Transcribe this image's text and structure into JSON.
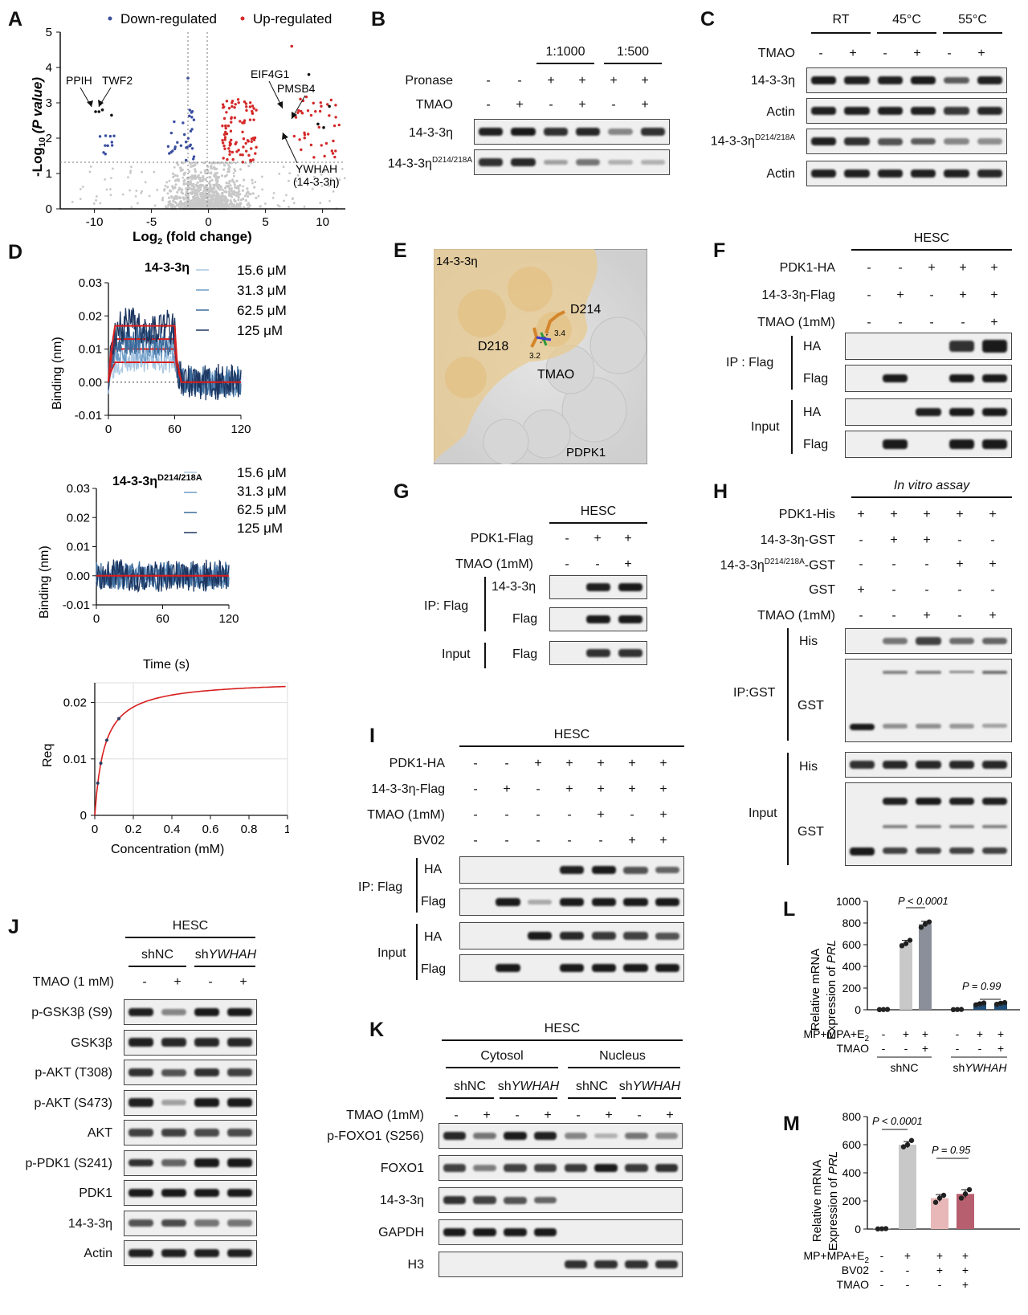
{
  "panels": {
    "A": "A",
    "B": "B",
    "C": "C",
    "D": "D",
    "E": "E",
    "F": "F",
    "G": "G",
    "H": "H",
    "I": "I",
    "J": "J",
    "K": "K",
    "L": "L",
    "M": "M"
  },
  "common": {
    "plus": "+",
    "minus": "-",
    "hesc": "HESC",
    "tmao": "TMAO",
    "tmao1mm": "TMAO (1mM)",
    "flag": "Flag",
    "ha": "HA",
    "his": "His",
    "gst": "GST",
    "input": "Input",
    "actin": "Actin",
    "eta": "14-3-3η",
    "mut_base": "14-3-3η",
    "mut_sup": "D214/218A",
    "pdk1_flag": "PDK1-Flag",
    "pdk1_ha": "PDK1-HA",
    "eta_flag": "14-3-3η-Flag"
  },
  "panelA": {
    "legend_down": "Down-regulated",
    "legend_up": "Up-regulated",
    "ylabel_pre": "-Log",
    "ylabel_sub": "10",
    "ylabel_post": " (P value)",
    "xlabel_pre": "Log",
    "xlabel_sub": "2",
    "xlabel_post": " (fold change)",
    "genes": [
      "PPIH",
      "TWF2",
      "EIF4G1",
      "PMSB4",
      "YWHAH",
      "(14-3-3η)"
    ],
    "xticks": [
      "-10",
      "-5",
      "0",
      "5",
      "10"
    ],
    "yticks": [
      "0",
      "1",
      "2",
      "3",
      "4",
      "5"
    ],
    "colors": {
      "down": "#3a4fa0",
      "up": "#d42a2a",
      "ns": "#c8c8c8"
    }
  },
  "panelB": {
    "ratio1": "1:1000",
    "ratio2": "1:500",
    "pronase": "Pronase",
    "tmao": "TMAO",
    "pronase_signs": [
      "-",
      "-",
      "+",
      "+",
      "+",
      "+"
    ],
    "tmao_signs": [
      "-",
      "+",
      "-",
      "+",
      "-",
      "+"
    ]
  },
  "panelC": {
    "temps": [
      "RT",
      "45°C",
      "55°C"
    ],
    "tmao_signs": [
      "-",
      "+",
      "-",
      "+",
      "-",
      "+"
    ]
  },
  "panelD": {
    "title1": "14-3-3η",
    "title2_base": "14-3-3η",
    "title2_sup": "D214/218A",
    "concs": [
      "15.6 μM",
      "31.3 μM",
      "62.5 μM",
      "125 μM"
    ],
    "ylabel": "Binding (nm)",
    "xlabel": "Time (s)",
    "yticks": [
      "0.03",
      "0.02",
      "0.01",
      "0.00",
      "-0.01"
    ],
    "xticks": [
      "0",
      "60",
      "120"
    ],
    "req_label": "Req",
    "req_yticks": [
      "0.02",
      "0.01",
      "0"
    ],
    "req_xticks": [
      "0",
      "0.2",
      "0.4",
      "0.6",
      "0.8",
      "1"
    ],
    "req_xlabel": "Concentration (mM)",
    "series_colors": [
      "#a9c7e3",
      "#6e9cc6",
      "#3c6a9a",
      "#1d3660"
    ]
  },
  "panelE": {
    "protein": "14-3-3η",
    "d214": "D214",
    "d218": "D218",
    "tmao": "TMAO",
    "pdpk1": "PDPK1",
    "d1": "3.4",
    "d2": "3.2"
  },
  "panelF": {
    "ip": "IP : Flag",
    "tmao_label": "TMAO (1mM)",
    "pdk1": [
      "-",
      "-",
      "+",
      "+",
      "+"
    ],
    "eta": [
      "-",
      "+",
      "-",
      "+",
      "+"
    ],
    "tmao": [
      "-",
      "-",
      "-",
      "-",
      "+"
    ]
  },
  "panelG": {
    "ip": "IP: Flag",
    "pdk1": [
      "-",
      "+",
      "+"
    ],
    "tmao": [
      "-",
      "-",
      "+"
    ]
  },
  "panelH": {
    "title": "In vitro assay",
    "pdk1_his": "PDK1-His",
    "eta_gst": "14-3-3η-GST",
    "mut_gst_base": "14-3-3η",
    "mut_gst_sup": "D214/218A",
    "mut_gst_suffix": "-GST",
    "ip": "IP:GST",
    "pdk1": [
      "+",
      "+",
      "+",
      "+",
      "+"
    ],
    "eta": [
      "-",
      "+",
      "+",
      "-",
      "-"
    ],
    "mut": [
      "-",
      "-",
      "-",
      "+",
      "+"
    ],
    "gst": [
      "+",
      "-",
      "-",
      "-",
      "-"
    ],
    "tmao": [
      "-",
      "-",
      "+",
      "-",
      "+"
    ]
  },
  "panelI": {
    "ip": "IP: Flag",
    "bv02": "BV02",
    "pdk1": [
      "-",
      "-",
      "+",
      "+",
      "+",
      "+",
      "+"
    ],
    "eta": [
      "-",
      "+",
      "-",
      "+",
      "+",
      "+",
      "+"
    ],
    "tmao": [
      "-",
      "-",
      "-",
      "-",
      "+",
      "-",
      "+"
    ],
    "bv": [
      "-",
      "-",
      "-",
      "-",
      "-",
      "+",
      "+"
    ]
  },
  "panelJ": {
    "shnc": "shNC",
    "sh_pre": "sh",
    "sh_gene": "YWHAH",
    "tmao": "TMAO (1 mM)",
    "signs": [
      "-",
      "+",
      "-",
      "+"
    ],
    "rows": [
      "p-GSK3β (S9)",
      "GSK3β",
      "p-AKT (T308)",
      "p-AKT (S473)",
      "AKT",
      "p-PDK1 (S241)",
      "PDK1",
      "14-3-3η",
      "Actin"
    ]
  },
  "panelK": {
    "cytosol": "Cytosol",
    "nucleus": "Nucleus",
    "signs": [
      "-",
      "+",
      "-",
      "+",
      "-",
      "+",
      "-",
      "+"
    ],
    "rows": [
      "p-FOXO1 (S256)",
      "FOXO1",
      "14-3-3η",
      "GAPDH",
      "H3"
    ]
  },
  "panelL": {
    "ylabel1": "Relative mRNA",
    "ylabel2_pre": "Expression of ",
    "ylabel2_gene": "PRL",
    "yticks": [
      "0",
      "200",
      "400",
      "600",
      "800",
      "1000"
    ],
    "p1": "P < 0.0001",
    "p2": "P = 0.99",
    "row1_label": "cAMP+MPA+E",
    "row1_sub": "2",
    "row2_label": "TMAO",
    "row1": [
      "-",
      "+",
      "+",
      "-",
      "+",
      "+"
    ],
    "row2": [
      "-",
      "-",
      "+",
      "-",
      "-",
      "+"
    ]
  },
  "panelM": {
    "yticks": [
      "0",
      "200",
      "400",
      "600",
      "800"
    ],
    "p1": "P < 0.0001",
    "p2": "P = 0.95",
    "row3_label": "BV02",
    "row1": [
      "-",
      "+",
      "+",
      "+"
    ],
    "row2": [
      "-",
      "-",
      "+",
      "+"
    ],
    "row3": [
      "-",
      "-",
      "-",
      "+"
    ]
  },
  "chart_data": [
    {
      "type": "bar",
      "title": "L",
      "categories": [
        "shNC ctrl",
        "shNC cAMP+MPA+E2",
        "shNC cAMP+MPA+E2+TMAO",
        "shYWHAH ctrl",
        "shYWHAH cAMP+MPA+E2",
        "shYWHAH cAMP+MPA+E2+TMAO"
      ],
      "values": [
        2,
        615,
        790,
        2,
        55,
        60
      ],
      "ylim": [
        0,
        1000
      ],
      "ylabel": "Relative mRNA Expression of PRL",
      "points": [
        [
          1,
          2,
          3
        ],
        [
          590,
          610,
          640
        ],
        [
          760,
          790,
          810
        ],
        [
          1,
          2,
          3
        ],
        [
          45,
          55,
          62
        ],
        [
          50,
          60,
          66
        ]
      ],
      "colors": [
        "#c8c8c8",
        "#c8c8c8",
        "#8a8f9a",
        "#1f4e79",
        "#1f4e79",
        "#1f4e79"
      ]
    },
    {
      "type": "bar",
      "title": "M",
      "categories": [
        "ctrl",
        "cAMP+MPA+E2",
        "cAMP+MPA+E2+BV02",
        "cAMP+MPA+E2+BV02+TMAO"
      ],
      "values": [
        2,
        600,
        220,
        250
      ],
      "ylim": [
        0,
        800
      ],
      "ylabel": "Relative mRNA Expression of PRL",
      "points": [
        [
          1,
          2,
          3
        ],
        [
          585,
          600,
          630
        ],
        [
          190,
          220,
          240
        ],
        [
          220,
          250,
          280
        ]
      ],
      "colors": [
        "#c8c8c8",
        "#c8c8c8",
        "#e8b7b7",
        "#b85f6f"
      ]
    }
  ]
}
